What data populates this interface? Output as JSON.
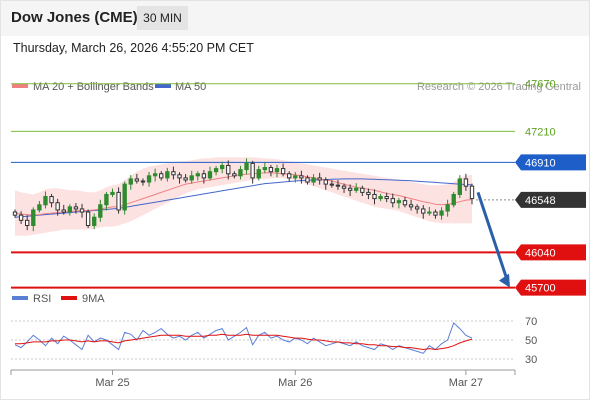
{
  "header": {
    "title": "Dow Jones (CME)",
    "interval": "30 MIN",
    "datetime": "Thursday, March 26, 2026 4:55:20 PM CET"
  },
  "legend": {
    "ma20": "MA 20 + Bollinger Bands",
    "ma50": "MA 50",
    "credit": "Research © 2026 Trading Central"
  },
  "colors": {
    "up": "#2e8b2e",
    "down": "#333333",
    "ma20": "#f08080",
    "ma50": "#4466cc",
    "band": "#fde2e2",
    "resistance": "#7dbb3a",
    "pivot": "#1e5ec8",
    "support": "#e01010",
    "last": "#333333",
    "rsi": "#5b7fd6",
    "rsi_ma": "#e01010"
  },
  "chart_data": {
    "type": "candlestick",
    "y_range": [
      45580,
      47880
    ],
    "x_labels": [
      {
        "label": "Mar 25",
        "index": 16
      },
      {
        "label": "Mar 26",
        "index": 46
      },
      {
        "label": "Mar 27",
        "index": 74
      }
    ],
    "levels": [
      {
        "value": 47670,
        "label": "47670",
        "kind": "resistance"
      },
      {
        "value": 47210,
        "label": "47210",
        "kind": "resistance"
      },
      {
        "value": 46910,
        "label": "46910",
        "kind": "pivot"
      },
      {
        "value": 46548,
        "label": "46548",
        "kind": "last"
      },
      {
        "value": 46040,
        "label": "46040",
        "kind": "support"
      },
      {
        "value": 45700,
        "label": "45700",
        "kind": "support"
      }
    ],
    "closes": [
      46400,
      46350,
      46300,
      46450,
      46500,
      46580,
      46520,
      46450,
      46430,
      46480,
      46460,
      46430,
      46300,
      46380,
      46500,
      46600,
      46620,
      46450,
      46700,
      46750,
      46730,
      46720,
      46780,
      46800,
      46760,
      46820,
      46790,
      46760,
      46740,
      46780,
      46800,
      46760,
      46820,
      46850,
      46880,
      46800,
      46780,
      46840,
      46900,
      46760,
      46840,
      46860,
      46820,
      46850,
      46800,
      46760,
      46780,
      46760,
      46720,
      46760,
      46740,
      46700,
      46690,
      46680,
      46660,
      46640,
      46660,
      46620,
      46600,
      46560,
      46580,
      46560,
      46520,
      46540,
      46500,
      46480,
      46460,
      46420,
      46430,
      46400,
      46440,
      46500,
      46600,
      46750,
      46680,
      46560
    ],
    "ma20": [
      46420,
      46410,
      46405,
      46400,
      46405,
      46415,
      46420,
      46425,
      46430,
      46435,
      46440,
      46445,
      46445,
      46450,
      46460,
      46470,
      46480,
      46480,
      46500,
      46520,
      46540,
      46560,
      46580,
      46600,
      46620,
      46640,
      46660,
      46680,
      46700,
      46710,
      46720,
      46730,
      46740,
      46750,
      46760,
      46770,
      46780,
      46790,
      46795,
      46800,
      46805,
      46810,
      46810,
      46805,
      46800,
      46795,
      46790,
      46780,
      46770,
      46760,
      46750,
      46740,
      46730,
      46715,
      46700,
      46685,
      46670,
      46660,
      46650,
      46640,
      46625,
      46610,
      46600,
      46590,
      46575,
      46560,
      46545,
      46530,
      46520,
      46505,
      46500,
      46505,
      46515,
      46530,
      46545,
      46550
    ],
    "bb_upper": [
      46640,
      46620,
      46610,
      46600,
      46620,
      46650,
      46660,
      46660,
      46650,
      46640,
      46640,
      46630,
      46620,
      46620,
      46640,
      46670,
      46690,
      46700,
      46740,
      46780,
      46820,
      46850,
      46870,
      46880,
      46890,
      46900,
      46910,
      46920,
      46920,
      46930,
      46940,
      46950,
      46950,
      46960,
      46960,
      46960,
      46960,
      46960,
      46960,
      46960,
      46955,
      46950,
      46945,
      46940,
      46930,
      46920,
      46910,
      46900,
      46890,
      46880,
      46870,
      46860,
      46850,
      46840,
      46830,
      46820,
      46810,
      46800,
      46790,
      46780,
      46770,
      46760,
      46750,
      46740,
      46730,
      46720,
      46710,
      46700,
      46690,
      46690,
      46690,
      46700,
      46720,
      46760,
      46780,
      46790
    ],
    "bb_lower": [
      46200,
      46200,
      46200,
      46210,
      46220,
      46230,
      46240,
      46250,
      46260,
      46260,
      46260,
      46260,
      46260,
      46270,
      46280,
      46290,
      46290,
      46300,
      46320,
      46340,
      46370,
      46400,
      46430,
      46460,
      46490,
      46520,
      46550,
      46580,
      46610,
      46630,
      46650,
      46660,
      46670,
      46680,
      46690,
      46700,
      46710,
      46720,
      46730,
      46740,
      46745,
      46750,
      46755,
      46760,
      46755,
      46750,
      46740,
      46720,
      46700,
      46680,
      46660,
      46640,
      46620,
      46600,
      46580,
      46560,
      46540,
      46520,
      46500,
      46480,
      46470,
      46460,
      46450,
      46440,
      46420,
      46400,
      46380,
      46360,
      46340,
      46330,
      46320,
      46320,
      46320,
      46320,
      46320,
      46320
    ],
    "ma50": [
      46380,
      46385,
      46390,
      46395,
      46400,
      46405,
      46410,
      46415,
      46420,
      46425,
      46430,
      46435,
      46440,
      46445,
      46450,
      46455,
      46460,
      46465,
      46475,
      46485,
      46495,
      46505,
      46515,
      46525,
      46535,
      46545,
      46555,
      46565,
      46575,
      46585,
      46595,
      46605,
      46615,
      46625,
      46635,
      46645,
      46655,
      46665,
      46675,
      46685,
      46695,
      46705,
      46710,
      46715,
      46720,
      46725,
      46730,
      46735,
      46738,
      46740,
      46742,
      46744,
      46746,
      46748,
      46750,
      46750,
      46750,
      46750,
      46748,
      46746,
      46744,
      46742,
      46740,
      46738,
      46735,
      46732,
      46728,
      46724,
      46720,
      46716,
      46712,
      46708,
      46704,
      46700,
      46696,
      46692
    ],
    "forecast": {
      "from": 46620,
      "to": 45700
    },
    "rsi": {
      "name": "RSI",
      "ma_name": "9MA",
      "range": [
        20,
        80
      ],
      "levels": [
        70,
        50,
        30
      ],
      "values": [
        45,
        42,
        48,
        55,
        50,
        44,
        52,
        46,
        54,
        50,
        45,
        40,
        55,
        48,
        52,
        50,
        45,
        40,
        58,
        56,
        50,
        60,
        55,
        58,
        62,
        56,
        52,
        54,
        50,
        55,
        58,
        52,
        56,
        60,
        62,
        50,
        54,
        58,
        63,
        45,
        55,
        58,
        52,
        54,
        50,
        48,
        52,
        50,
        46,
        52,
        48,
        44,
        46,
        48,
        46,
        44,
        48,
        44,
        42,
        40,
        46,
        44,
        40,
        44,
        42,
        40,
        38,
        36,
        44,
        40,
        46,
        50,
        68,
        62,
        55,
        52
      ],
      "ma_values": [
        46,
        46,
        47,
        48,
        48,
        48,
        49,
        49,
        50,
        50,
        49,
        48,
        49,
        48,
        49,
        49,
        48,
        47,
        49,
        50,
        51,
        52,
        53,
        54,
        55,
        55,
        55,
        55,
        54,
        54,
        54,
        54,
        55,
        55,
        56,
        55,
        55,
        55,
        56,
        55,
        55,
        55,
        55,
        55,
        54,
        53,
        52,
        52,
        51,
        50,
        50,
        49,
        48,
        48,
        47,
        47,
        46,
        46,
        45,
        45,
        44,
        44,
        43,
        43,
        42,
        42,
        41,
        40,
        41,
        40,
        41,
        42,
        44,
        47,
        49,
        51
      ]
    }
  }
}
